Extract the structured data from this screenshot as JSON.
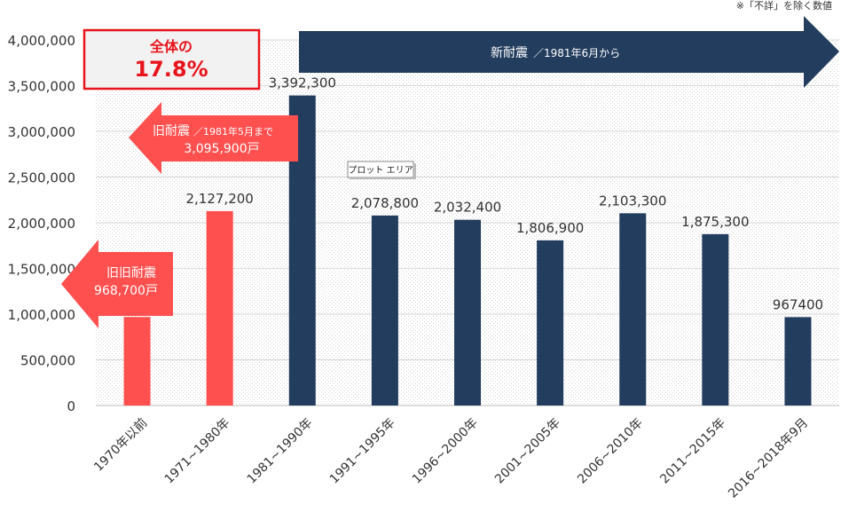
{
  "note": "※「不詳」を除く数値",
  "plot_area_tooltip": "プロット エリア",
  "callouts": {
    "total": {
      "line1": "全体の",
      "line2": "17.8%"
    },
    "new": {
      "main": "新耐震",
      "sub": "／1981年6月から"
    },
    "old": {
      "main": "旧耐震",
      "sub": "／1981年5月まで",
      "value": "3,095,900戸"
    },
    "oldold": {
      "main": "旧旧耐震",
      "value": "968,700戸"
    }
  },
  "colors": {
    "old": "#ff5050",
    "new": "#223d5e",
    "grid": "#d9d9d9",
    "total_border": "#e8141c"
  },
  "chart_data": {
    "type": "bar",
    "categories": [
      "1970年以前",
      "1971~1980年",
      "1981~1990年",
      "1991~1995年",
      "1996~2000年",
      "2001~2005年",
      "2006~2010年",
      "2011~2015年",
      "2016~2018年9月"
    ],
    "values": [
      968700,
      2127200,
      3392300,
      2078800,
      2032400,
      1806900,
      2103300,
      1875300,
      967400
    ],
    "data_labels": [
      "",
      "2,127,200",
      "3,392,300",
      "2,078,800",
      "2,032,400",
      "1,806,900",
      "2,103,300",
      "1,875,300",
      "967400"
    ],
    "bar_groups": [
      "old",
      "old",
      "new",
      "new",
      "new",
      "new",
      "new",
      "new",
      "new"
    ],
    "ylim": [
      0,
      4000000
    ],
    "yticks": [
      0,
      500000,
      1000000,
      1500000,
      2000000,
      2500000,
      3000000,
      3500000,
      4000000
    ],
    "ytick_labels": [
      "0",
      "500,000",
      "1,000,000",
      "1,500,000",
      "2,000,000",
      "2,500,000",
      "3,000,000",
      "3,500,000",
      "4,000,000"
    ],
    "grid": true
  }
}
